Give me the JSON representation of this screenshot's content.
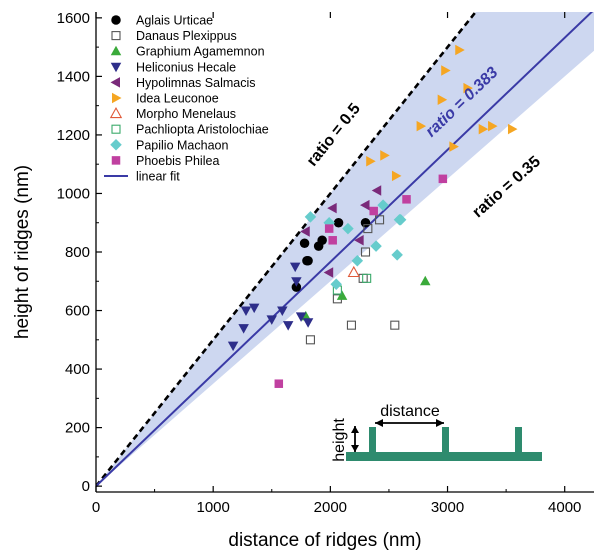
{
  "chart_data": {
    "type": "scatter",
    "xlabel": "distance of ridges (nm)",
    "ylabel": "height of ridges (nm)",
    "xlim": [
      0,
      4250
    ],
    "ylim": [
      -20,
      1620
    ],
    "xticks": [
      0,
      1000,
      2000,
      3000,
      4000
    ],
    "yticks": [
      0,
      200,
      400,
      600,
      800,
      1000,
      1200,
      1400,
      1600
    ],
    "grid": false,
    "legend_position": "top-left",
    "lines": [
      {
        "label": "ratio = 0.5",
        "slope": 0.5,
        "style": "dashed",
        "color": "#000000"
      },
      {
        "label": "ratio = 0.383",
        "slope": 0.383,
        "style": "solid",
        "color": "#3a3aa6"
      },
      {
        "label": "ratio = 0.35",
        "slope": 0.35,
        "style": "band-edge",
        "color": "#000000"
      }
    ],
    "band": {
      "slope_low": 0.35,
      "slope_high": 0.5,
      "color": "#cdd7f0"
    },
    "series": [
      {
        "name": "Aglais Urticae",
        "marker": "circle",
        "color": "#000000",
        "x": [
          1710,
          1780,
          1800,
          1810,
          1900,
          1930,
          2070,
          2300
        ],
        "y": [
          680,
          830,
          770,
          770,
          820,
          840,
          900,
          900
        ]
      },
      {
        "name": "Danaus Plexippus",
        "marker": "square-open",
        "color": "#555555",
        "x": [
          1830,
          2060,
          2180,
          2280,
          2300,
          2320,
          2420,
          2550
        ],
        "y": [
          500,
          640,
          550,
          710,
          800,
          880,
          910,
          550
        ]
      },
      {
        "name": "Graphium Agamemnon",
        "marker": "triangle-up",
        "color": "#3aaa3a",
        "x": [
          1790,
          2100,
          2810
        ],
        "y": [
          580,
          650,
          700
        ]
      },
      {
        "name": "Heliconius Hecale",
        "marker": "triangle-down",
        "color": "#2e2e8a",
        "x": [
          1170,
          1260,
          1280,
          1350,
          1500,
          1590,
          1640,
          1710,
          1700,
          1750,
          1810
        ],
        "y": [
          480,
          540,
          600,
          610,
          570,
          600,
          550,
          700,
          750,
          580,
          560
        ]
      },
      {
        "name": "Hypolimnas Salmacis",
        "marker": "triangle-left",
        "color": "#7a2a7a",
        "x": [
          1790,
          1990,
          2020,
          2250,
          2300,
          2400
        ],
        "y": [
          870,
          730,
          950,
          840,
          960,
          1010
        ]
      },
      {
        "name": "Idea Leuconoe",
        "marker": "triangle-right",
        "color": "#f5a623",
        "x": [
          2340,
          2460,
          2560,
          2770,
          2950,
          2980,
          3050,
          3100,
          3170,
          3300,
          3380,
          3550
        ],
        "y": [
          1110,
          1130,
          1060,
          1230,
          1320,
          1420,
          1160,
          1490,
          1360,
          1220,
          1230,
          1220
        ]
      },
      {
        "name": "Morpho Menelaus",
        "marker": "triangle-up-open",
        "color": "#e05a3a",
        "x": [
          2200
        ],
        "y": [
          730
        ]
      },
      {
        "name": "Pachliopta Aristolochiae",
        "marker": "square-open",
        "color": "#3aaa6a",
        "x": [
          2060,
          2310
        ],
        "y": [
          670,
          710
        ]
      },
      {
        "name": "Papilio Machaon",
        "marker": "diamond",
        "color": "#66cccc",
        "x": [
          1830,
          1990,
          2050,
          2150,
          2230,
          2390,
          2450,
          2570,
          2590,
          2600
        ],
        "y": [
          920,
          900,
          690,
          880,
          770,
          820,
          960,
          790,
          910,
          910
        ]
      },
      {
        "name": "Phoebis Philea",
        "marker": "square",
        "color": "#c040a0",
        "x": [
          1560,
          1990,
          2020,
          2370,
          2650,
          2960
        ],
        "y": [
          350,
          880,
          840,
          940,
          980,
          1050
        ]
      }
    ],
    "legend_entries": [
      {
        "label": "Aglais Urticae",
        "marker": "circle",
        "color": "#000000"
      },
      {
        "label": "Danaus Plexippus",
        "marker": "square-open",
        "color": "#555555"
      },
      {
        "label": "Graphium Agamemnon",
        "marker": "triangle-up",
        "color": "#3aaa3a"
      },
      {
        "label": "Heliconius Hecale",
        "marker": "triangle-down",
        "color": "#2e2e8a"
      },
      {
        "label": "Hypolimnas Salmacis",
        "marker": "triangle-left",
        "color": "#7a2a7a"
      },
      {
        "label": "Idea Leuconoe",
        "marker": "triangle-right",
        "color": "#f5a623"
      },
      {
        "label": "Morpho Menelaus",
        "marker": "triangle-up-open",
        "color": "#e05a3a"
      },
      {
        "label": "Pachliopta Aristolochiae",
        "marker": "square-open",
        "color": "#3aaa6a"
      },
      {
        "label": "Papilio Machaon",
        "marker": "diamond",
        "color": "#66cccc"
      },
      {
        "label": "Phoebis Philea",
        "marker": "square",
        "color": "#c040a0"
      },
      {
        "label": "linear fit",
        "marker": "line",
        "color": "#3a3aa6"
      }
    ],
    "inset": {
      "height_label": "height",
      "distance_label": "distance",
      "color": "#2e8b6e"
    }
  }
}
